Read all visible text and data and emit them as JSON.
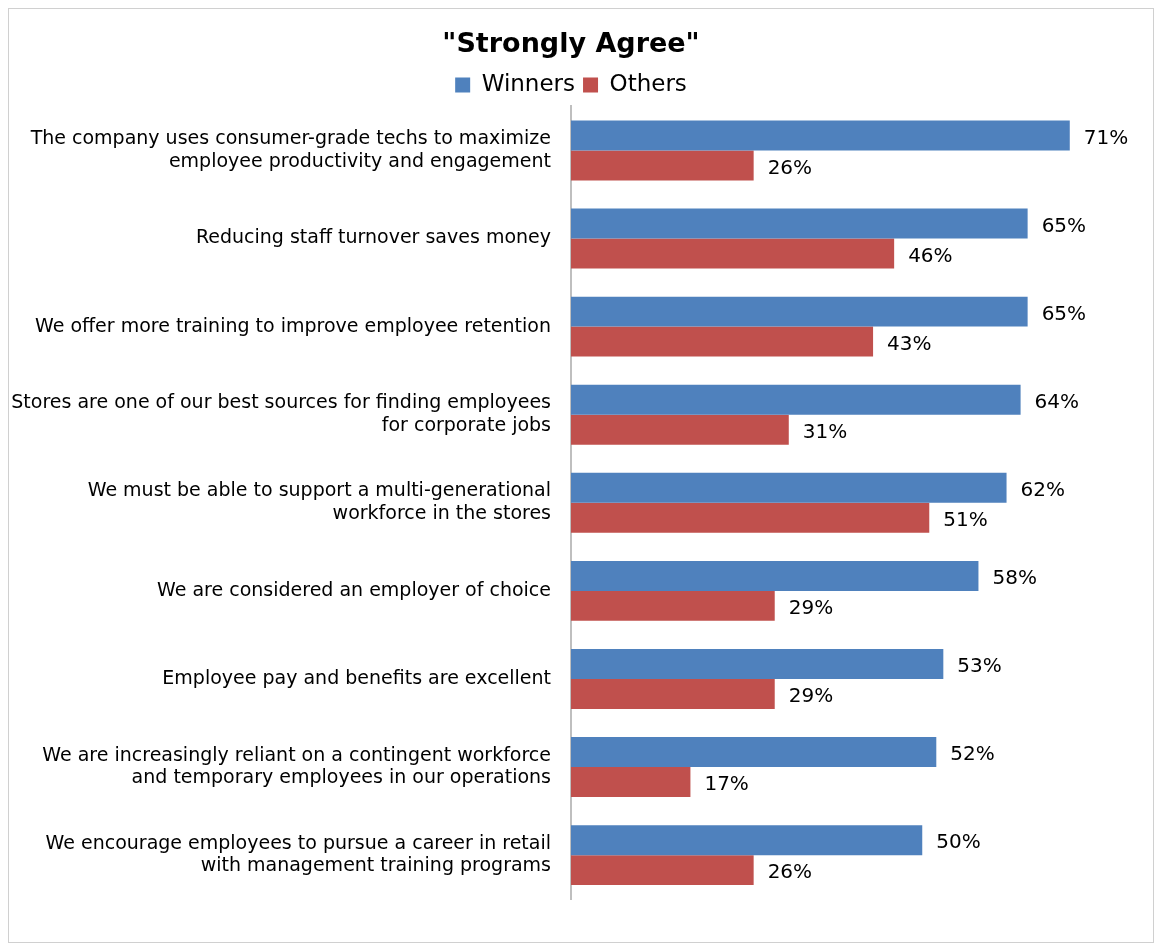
{
  "chart_data": {
    "type": "bar",
    "orientation": "horizontal",
    "title": "\"Strongly Agree\"",
    "legend": "top",
    "grid": false,
    "tick_labels": "y",
    "categories": [
      "The company uses consumer-grade techs to maximize employee productivity and engagement",
      "Reducing staff turnover saves money",
      "We offer more training to improve employee retention",
      "Stores are one of our best sources for finding employees for corporate jobs",
      "We must be able to support a multi-generational workforce in the stores",
      "We are considered an employer of choice",
      "Employee pay and benefits are excellent",
      "We are increasingly reliant on a contingent workforce and temporary employees in our operations",
      "We encourage employees to pursue a career in retail with management training programs"
    ],
    "series": [
      {
        "name": "Winners",
        "color": "#4f81bd",
        "values": [
          71,
          65,
          65,
          64,
          62,
          58,
          53,
          52,
          50
        ],
        "value_labels": [
          "71%",
          "65%",
          "65%",
          "64%",
          "62%",
          "58%",
          "53%",
          "52%",
          "50%"
        ]
      },
      {
        "name": "Others",
        "color": "#c0504d",
        "values": [
          26,
          46,
          43,
          31,
          51,
          29,
          29,
          17,
          26
        ],
        "value_labels": [
          "26%",
          "46%",
          "43%",
          "31%",
          "51%",
          "29%",
          "29%",
          "17%",
          "26%"
        ]
      }
    ]
  }
}
